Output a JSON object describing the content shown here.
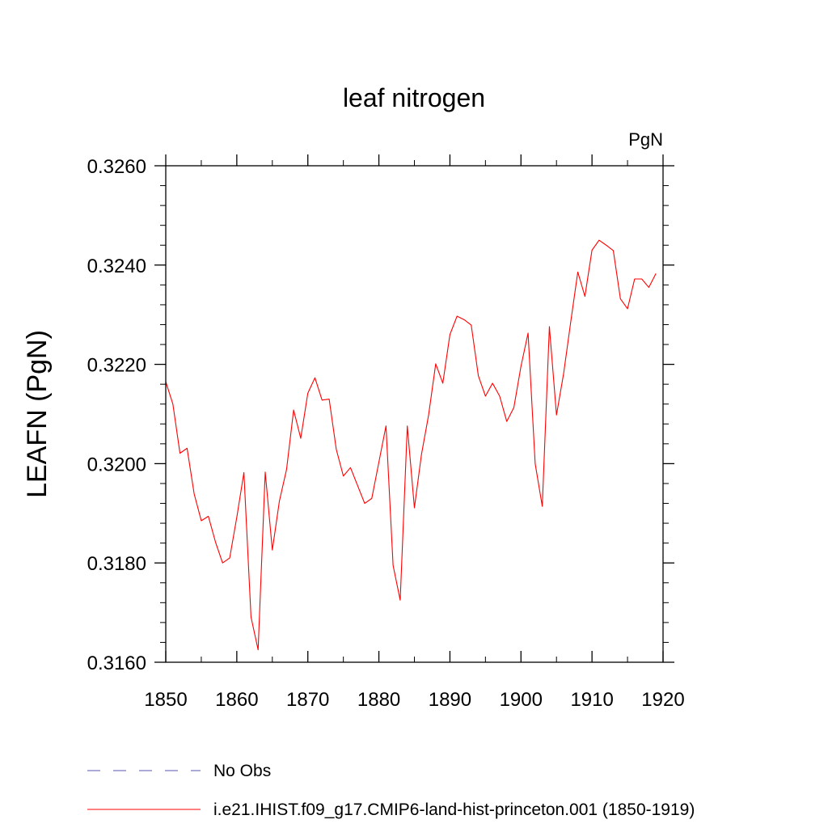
{
  "chart_data": {
    "type": "line",
    "title": "leaf nitrogen",
    "units_label": "PgN",
    "xlabel": "",
    "ylabel": "LEAFN  (PgN)",
    "xlim": [
      1850,
      1920
    ],
    "ylim": [
      0.316,
      0.326
    ],
    "x_ticks": [
      1850,
      1860,
      1870,
      1880,
      1890,
      1900,
      1910,
      1920
    ],
    "x_tick_labels": [
      "1850",
      "1860",
      "1870",
      "1880",
      "1890",
      "1900",
      "1910",
      "1920"
    ],
    "y_ticks": [
      0.316,
      0.318,
      0.32,
      0.322,
      0.324,
      0.326
    ],
    "y_tick_labels": [
      "0.3160",
      "0.3180",
      "0.3200",
      "0.3220",
      "0.3240",
      "0.3260"
    ],
    "grid": false,
    "legend_placement": "bottom",
    "series": [
      {
        "name": "i.e21.IHIST.f09_g17.CMIP6-land-hist-princeton.001 (1850-1919)",
        "color": "#ff0000",
        "style": "solid",
        "x": [
          1850,
          1851,
          1852,
          1853,
          1854,
          1855,
          1856,
          1857,
          1858,
          1859,
          1860,
          1861,
          1862,
          1863,
          1864,
          1865,
          1866,
          1867,
          1868,
          1869,
          1870,
          1871,
          1872,
          1873,
          1874,
          1875,
          1876,
          1877,
          1878,
          1879,
          1880,
          1881,
          1882,
          1883,
          1884,
          1885,
          1886,
          1887,
          1888,
          1889,
          1890,
          1891,
          1892,
          1893,
          1894,
          1895,
          1896,
          1897,
          1898,
          1899,
          1900,
          1901,
          1902,
          1903,
          1904,
          1905,
          1906,
          1907,
          1908,
          1909,
          1910,
          1911,
          1912,
          1913,
          1914,
          1915,
          1916,
          1917,
          1918,
          1919
        ],
        "values": [
          0.32165,
          0.3212,
          0.32021,
          0.32031,
          0.31939,
          0.31885,
          0.31894,
          0.31842,
          0.318,
          0.3181,
          0.31892,
          0.31982,
          0.31691,
          0.31625,
          0.31983,
          0.31826,
          0.31925,
          0.31988,
          0.32108,
          0.32051,
          0.32142,
          0.32173,
          0.32128,
          0.3213,
          0.32029,
          0.31975,
          0.31992,
          0.31956,
          0.3192,
          0.3193,
          0.32003,
          0.32076,
          0.31795,
          0.31725,
          0.32076,
          0.31911,
          0.32019,
          0.32098,
          0.32201,
          0.32162,
          0.3226,
          0.32297,
          0.3229,
          0.32279,
          0.32177,
          0.32136,
          0.32162,
          0.32136,
          0.32085,
          0.32113,
          0.32196,
          0.32263,
          0.32,
          0.31914,
          0.32276,
          0.32098,
          0.32181,
          0.32285,
          0.32386,
          0.32337,
          0.3243,
          0.3245,
          0.3244,
          0.32429,
          0.32332,
          0.32312,
          0.32372,
          0.32372,
          0.32355,
          0.32383
        ]
      }
    ],
    "legend": [
      {
        "label": "No Obs",
        "color": "#5a56b0",
        "style": "dashed"
      },
      {
        "label": "i.e21.IHIST.f09_g17.CMIP6-land-hist-princeton.001 (1850-1919)",
        "color": "#ff0000",
        "style": "solid"
      }
    ]
  }
}
